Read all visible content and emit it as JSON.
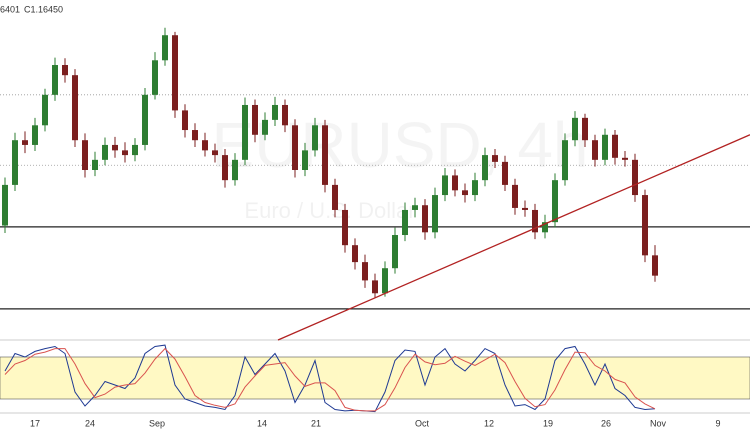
{
  "chart_data": [
    {
      "type": "candlestick",
      "header_low": "6401",
      "header_close": "C1.16450",
      "watermark": "EURUSD, 4h",
      "watermark_subtitle": "Euro / U.S. Dollar",
      "x_labels": [
        "17",
        "24",
        "Sep",
        "14",
        "21",
        "Oct",
        "12",
        "19",
        "26",
        "Nov",
        "9"
      ],
      "open": [
        1.1719,
        1.1779,
        1.1845,
        1.1838,
        1.1867,
        1.1912,
        1.1956,
        1.1941,
        1.1845,
        1.1801,
        1.1816,
        1.1838,
        1.183,
        1.1823,
        1.1838,
        1.1912,
        1.1963,
        1.2,
        1.1889,
        1.186,
        1.1845,
        1.183,
        1.1823,
        1.1786,
        1.1816,
        1.1897,
        1.1853,
        1.1875,
        1.1897,
        1.1867,
        1.1801,
        1.183,
        1.1867,
        1.1779,
        1.1742,
        1.169,
        1.1665,
        1.1638,
        1.1619,
        1.1656,
        1.1705,
        1.1742,
        1.1749,
        1.1709,
        1.1764,
        1.1793,
        1.1771,
        1.1764,
        1.1786,
        1.1823,
        1.1813,
        1.1779,
        1.1745,
        1.1742,
        1.1709,
        1.1724,
        1.1786,
        1.1845,
        1.1878,
        1.1845,
        1.1816,
        1.1853,
        1.1819,
        1.1816,
        1.1764,
        1.1675
      ],
      "high": [
        1.179,
        1.1856,
        1.1858,
        1.1878,
        1.1921,
        1.1967,
        1.1966,
        1.195,
        1.1855,
        1.1828,
        1.1849,
        1.185,
        1.1842,
        1.1848,
        1.1922,
        1.1975,
        1.2011,
        1.2005,
        1.1898,
        1.187,
        1.1856,
        1.184,
        1.1832,
        1.1826,
        1.1908,
        1.1905,
        1.1886,
        1.1909,
        1.1905,
        1.1876,
        1.1841,
        1.1878,
        1.1875,
        1.1788,
        1.1751,
        1.17,
        1.1676,
        1.1648,
        1.1666,
        1.1716,
        1.1753,
        1.176,
        1.1758,
        1.1775,
        1.1804,
        1.1802,
        1.1781,
        1.1797,
        1.1834,
        1.1832,
        1.1822,
        1.1788,
        1.1756,
        1.1751,
        1.1735,
        1.1796,
        1.1855,
        1.1888,
        1.1884,
        1.1853,
        1.1862,
        1.186,
        1.1829,
        1.1825,
        1.1772,
        1.169
      ],
      "low": [
        1.1708,
        1.177,
        1.1826,
        1.1829,
        1.1858,
        1.1903,
        1.193,
        1.1835,
        1.179,
        1.1792,
        1.1808,
        1.1819,
        1.1812,
        1.1814,
        1.183,
        1.1905,
        1.1955,
        1.1878,
        1.1849,
        1.1835,
        1.1821,
        1.1812,
        1.1775,
        1.1778,
        1.1808,
        1.1842,
        1.1845,
        1.1866,
        1.1857,
        1.179,
        1.1792,
        1.1821,
        1.1768,
        1.1731,
        1.1679,
        1.1654,
        1.1627,
        1.1612,
        1.1614,
        1.1648,
        1.1696,
        1.1731,
        1.1698,
        1.17,
        1.1755,
        1.1762,
        1.1753,
        1.1755,
        1.1777,
        1.1804,
        1.177,
        1.1735,
        1.1732,
        1.1699,
        1.17,
        1.1716,
        1.1778,
        1.1836,
        1.1835,
        1.1806,
        1.1808,
        1.1809,
        1.1806,
        1.1754,
        1.1665,
        1.1636
      ],
      "close": [
        1.1779,
        1.1845,
        1.1838,
        1.1867,
        1.1912,
        1.1956,
        1.1941,
        1.1845,
        1.1801,
        1.1816,
        1.1838,
        1.183,
        1.1823,
        1.1838,
        1.1912,
        1.1963,
        1.2,
        1.1889,
        1.186,
        1.1845,
        1.183,
        1.1823,
        1.1786,
        1.1816,
        1.1897,
        1.1853,
        1.1875,
        1.1897,
        1.1867,
        1.1801,
        1.183,
        1.1867,
        1.1779,
        1.1742,
        1.169,
        1.1665,
        1.1638,
        1.1619,
        1.1656,
        1.1705,
        1.1742,
        1.1749,
        1.1709,
        1.1764,
        1.1793,
        1.1771,
        1.1764,
        1.1786,
        1.1823,
        1.1813,
        1.1779,
        1.1745,
        1.1742,
        1.1709,
        1.1724,
        1.1786,
        1.1845,
        1.1878,
        1.1845,
        1.1816,
        1.1853,
        1.1819,
        1.1816,
        1.1764,
        1.1675,
        1.1645
      ],
      "up_color": "#2e7d32",
      "down_color": "#7b1f1f",
      "ylim": [
        1.155,
        1.2052
      ],
      "levels": [
        {
          "value": 1.1912,
          "style": "dotted"
        },
        {
          "value": 1.1808,
          "style": "dotted"
        },
        {
          "value": 1.1717,
          "style": "solid"
        },
        {
          "value": 1.1596,
          "style": "solid"
        }
      ],
      "trendline": {
        "values": [
          1.155,
          1.1853
        ],
        "color": "#b22222"
      }
    },
    {
      "type": "line",
      "series": [
        {
          "color": "#1f3a93",
          "values": [
            60,
            85,
            80,
            88,
            92,
            95,
            85,
            30,
            10,
            25,
            45,
            40,
            35,
            50,
            85,
            95,
            97,
            40,
            20,
            15,
            10,
            8,
            5,
            25,
            80,
            55,
            70,
            85,
            60,
            15,
            40,
            75,
            15,
            5,
            3,
            4,
            3,
            2,
            30,
            75,
            90,
            88,
            40,
            80,
            92,
            70,
            60,
            75,
            92,
            85,
            40,
            10,
            12,
            5,
            20,
            75,
            92,
            95,
            70,
            40,
            70,
            35,
            25,
            8,
            5,
            6
          ]
        },
        {
          "color": "#d9534f",
          "values": [
            55,
            70,
            75,
            84,
            87,
            92,
            92,
            70,
            42,
            22,
            27,
            37,
            40,
            42,
            57,
            77,
            92,
            77,
            52,
            25,
            15,
            11,
            8,
            13,
            37,
            53,
            68,
            70,
            72,
            53,
            38,
            43,
            43,
            32,
            8,
            4,
            3,
            3,
            12,
            36,
            65,
            84,
            73,
            69,
            71,
            81,
            74,
            68,
            76,
            84,
            72,
            45,
            21,
            9,
            12,
            33,
            62,
            87,
            86,
            68,
            60,
            48,
            43,
            23,
            13,
            6
          ]
        }
      ],
      "ylim": [
        0,
        100
      ],
      "band": [
        20,
        80
      ],
      "band_color": "#fff9c4"
    }
  ]
}
